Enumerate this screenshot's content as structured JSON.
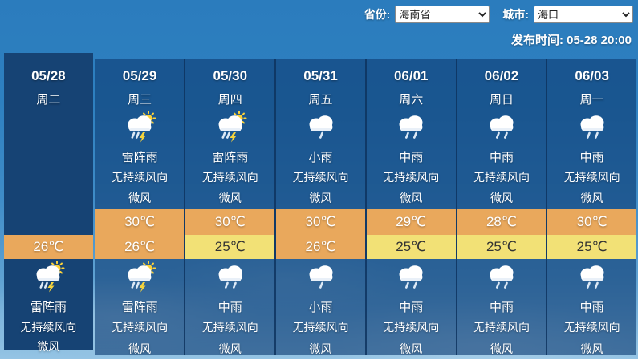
{
  "header": {
    "province_label": "省份:",
    "province_value": "海南省",
    "city_label": "城市:",
    "city_value": "海口",
    "publish_text": "发布时间: 05-28 20:00"
  },
  "forecast": {
    "columns": [
      {
        "date": "05/28",
        "week": "周二",
        "today": true,
        "day": null,
        "high": null,
        "low": {
          "value": "26℃",
          "style": "orange"
        },
        "night": {
          "icon": "thunder-shower",
          "desc": "雷阵雨",
          "wind": "无持续风向",
          "power": "微风"
        }
      },
      {
        "date": "05/29",
        "week": "周三",
        "today": false,
        "day": {
          "icon": "thunder-shower",
          "desc": "雷阵雨",
          "wind": "无持续风向",
          "power": "微风"
        },
        "high": {
          "value": "30℃"
        },
        "low": {
          "value": "26℃",
          "style": "orange"
        },
        "night": {
          "icon": "thunder-shower",
          "desc": "雷阵雨",
          "wind": "无持续风向",
          "power": "微风"
        }
      },
      {
        "date": "05/30",
        "week": "周四",
        "today": false,
        "day": {
          "icon": "thunder-shower",
          "desc": "雷阵雨",
          "wind": "无持续风向",
          "power": "微风"
        },
        "high": {
          "value": "30℃"
        },
        "low": {
          "value": "25℃",
          "style": "yellow"
        },
        "night": {
          "icon": "moderate-rain",
          "desc": "中雨",
          "wind": "无持续风向",
          "power": "微风"
        }
      },
      {
        "date": "05/31",
        "week": "周五",
        "today": false,
        "day": {
          "icon": "light-rain",
          "desc": "小雨",
          "wind": "无持续风向",
          "power": "微风"
        },
        "high": {
          "value": "30℃"
        },
        "low": {
          "value": "26℃",
          "style": "orange"
        },
        "night": {
          "icon": "light-rain",
          "desc": "小雨",
          "wind": "无持续风向",
          "power": "微风"
        }
      },
      {
        "date": "06/01",
        "week": "周六",
        "today": false,
        "day": {
          "icon": "moderate-rain",
          "desc": "中雨",
          "wind": "无持续风向",
          "power": "微风"
        },
        "high": {
          "value": "29℃"
        },
        "low": {
          "value": "25℃",
          "style": "yellow"
        },
        "night": {
          "icon": "moderate-rain",
          "desc": "中雨",
          "wind": "无持续风向",
          "power": "微风"
        }
      },
      {
        "date": "06/02",
        "week": "周日",
        "today": false,
        "day": {
          "icon": "moderate-rain",
          "desc": "中雨",
          "wind": "无持续风向",
          "power": "微风"
        },
        "high": {
          "value": "28℃"
        },
        "low": {
          "value": "25℃",
          "style": "yellow"
        },
        "night": {
          "icon": "moderate-rain",
          "desc": "中雨",
          "wind": "无持续风向",
          "power": "微风"
        }
      },
      {
        "date": "06/03",
        "week": "周一",
        "today": false,
        "day": {
          "icon": "moderate-rain",
          "desc": "中雨",
          "wind": "无持续风向",
          "power": "微风"
        },
        "high": {
          "value": "30℃"
        },
        "low": {
          "value": "25℃",
          "style": "yellow"
        },
        "night": {
          "icon": "moderate-rain",
          "desc": "中雨",
          "wind": "无持续风向",
          "power": "微风"
        }
      }
    ]
  },
  "colors": {
    "high_temp_bg": "#e9a85c",
    "low_temp_orange_bg": "#e9a85c",
    "low_temp_yellow_bg": "#f2e176",
    "today_column_bg": "#164374",
    "column_bg": "rgba(13,60,115,0.62)",
    "sky_top": "#2b7cbd",
    "sky_bottom": "#95c4e4"
  }
}
